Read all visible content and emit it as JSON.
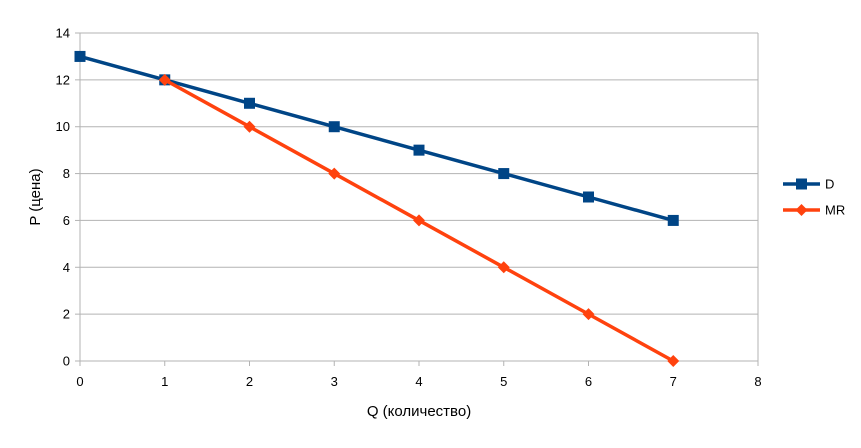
{
  "chart_data": {
    "type": "line",
    "title": "",
    "xlabel": "Q (количество)",
    "ylabel": "P (цена)",
    "xlim": [
      0,
      8
    ],
    "ylim": [
      0,
      14
    ],
    "x_ticks": [
      0,
      1,
      2,
      3,
      4,
      5,
      6,
      7,
      8
    ],
    "y_ticks": [
      0,
      2,
      4,
      6,
      8,
      10,
      12,
      14
    ],
    "grid": "horizontal",
    "legend_position": "right",
    "series": [
      {
        "name": "D",
        "marker": "square",
        "color": "#004586",
        "x": [
          0,
          1,
          2,
          3,
          4,
          5,
          6,
          7
        ],
        "y": [
          13,
          12,
          11,
          10,
          9,
          8,
          7,
          6
        ]
      },
      {
        "name": "MR",
        "marker": "diamond",
        "color": "#FF420E",
        "x": [
          1,
          2,
          3,
          4,
          5,
          6,
          7
        ],
        "y": [
          12,
          10,
          8,
          6,
          4,
          2,
          0
        ]
      }
    ]
  }
}
